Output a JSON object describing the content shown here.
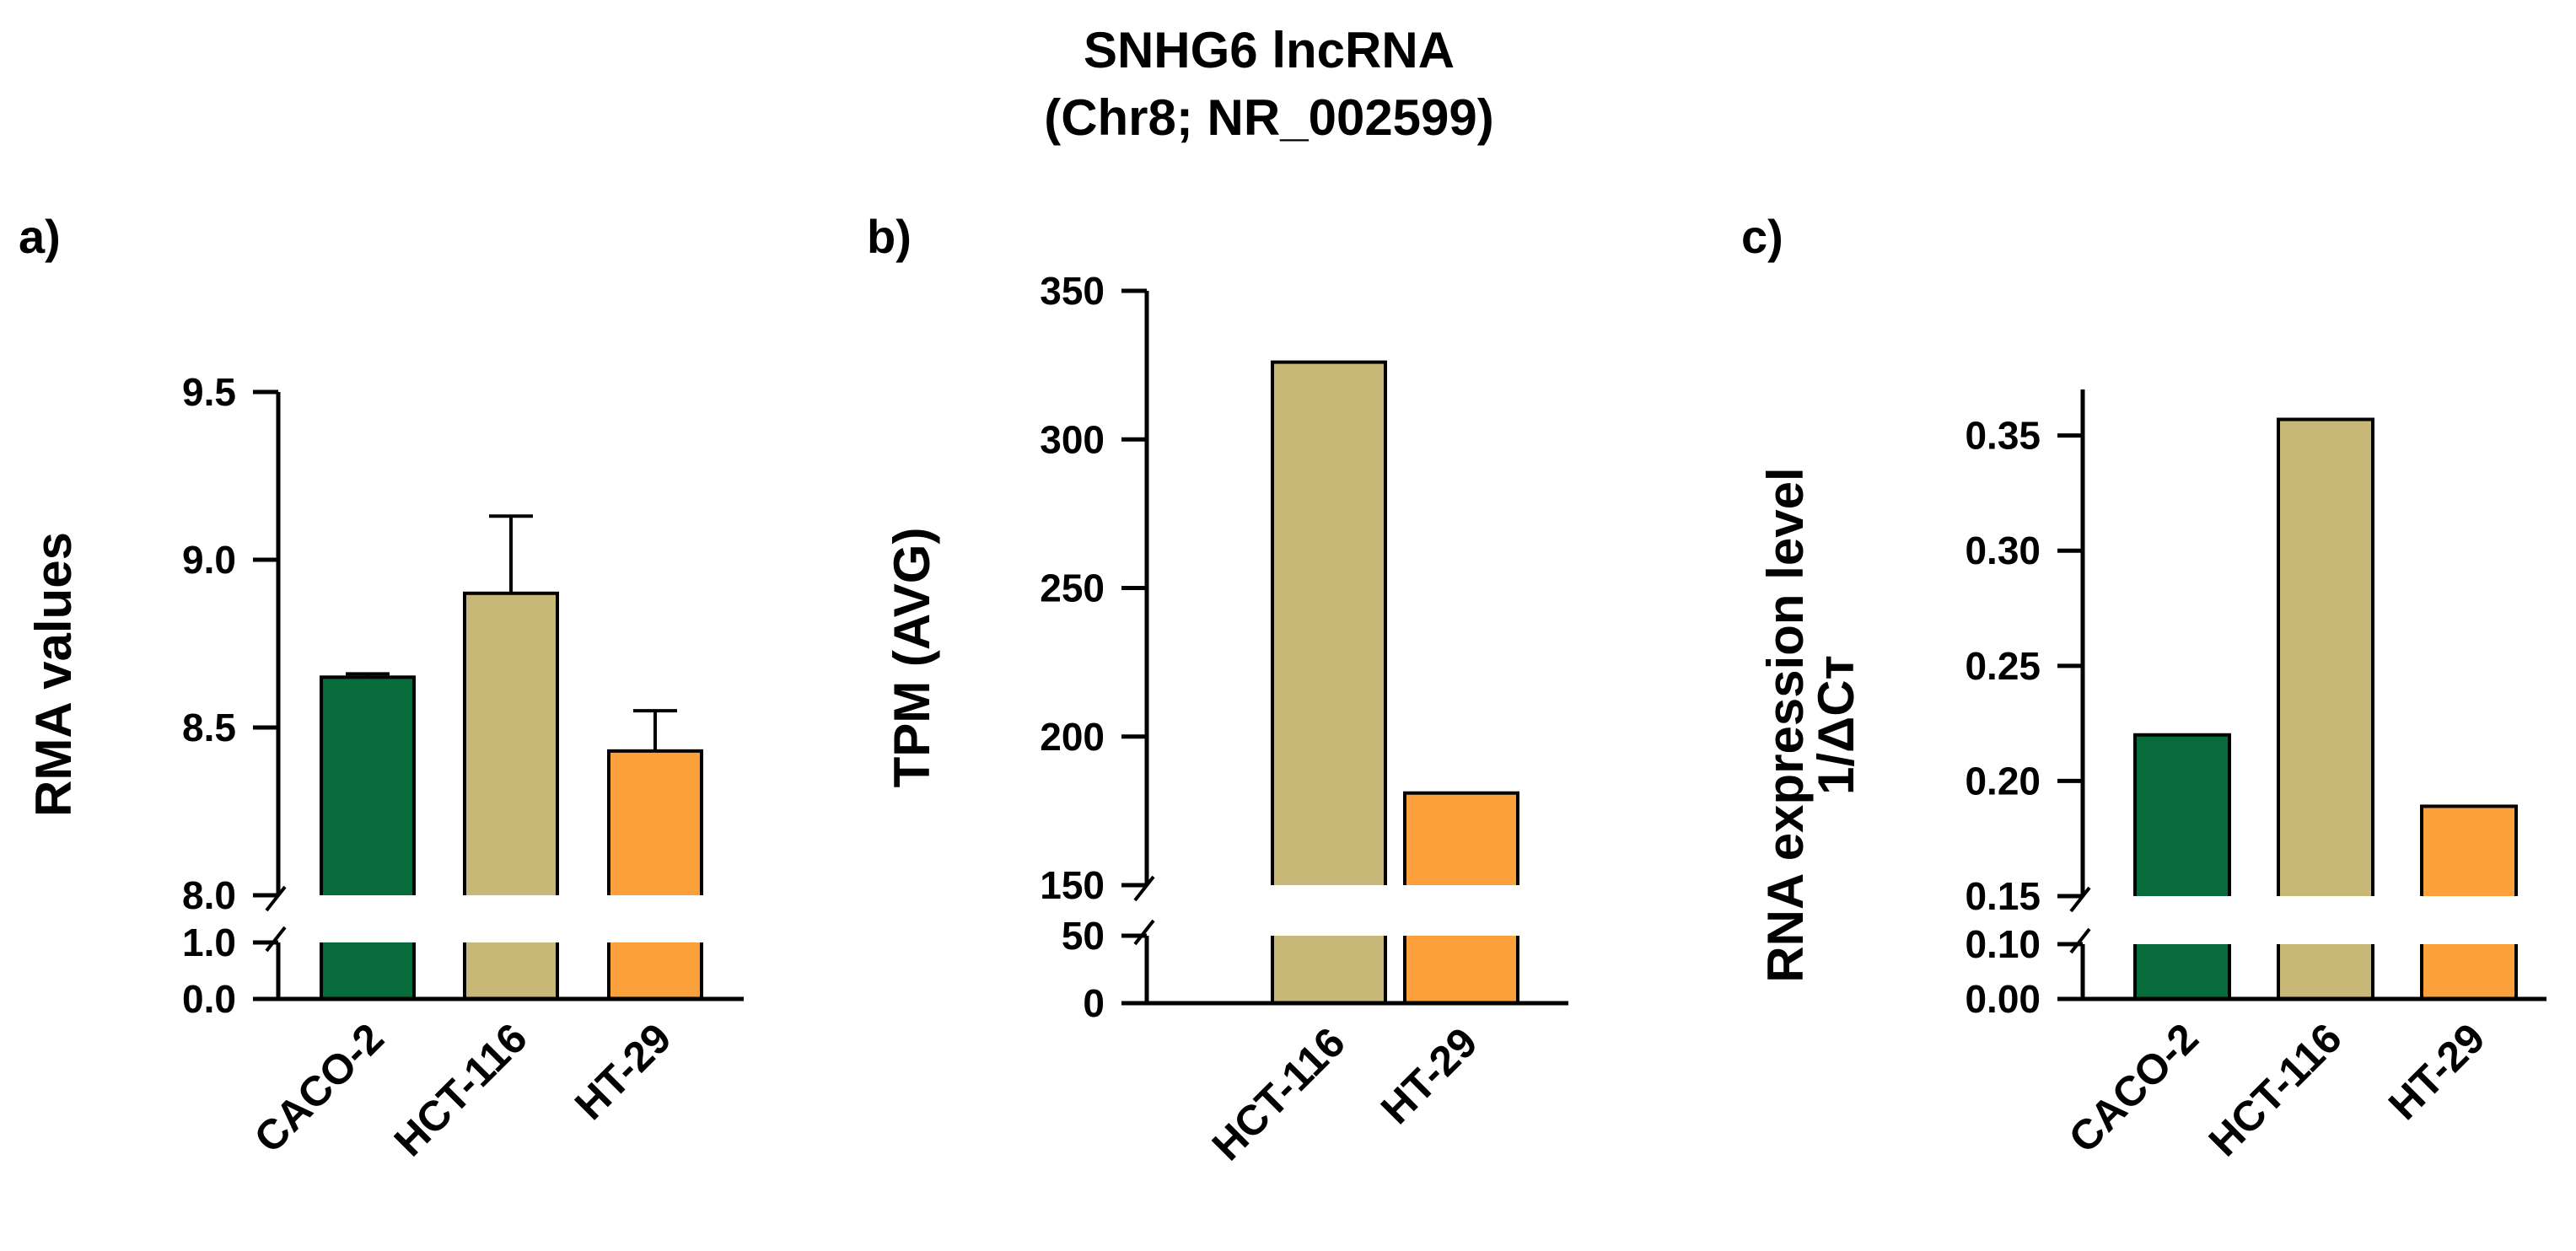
{
  "figure": {
    "title_line1": "SNHG6 lncRNA",
    "title_line2": "(Chr8; NR_002599)"
  },
  "colors": {
    "CACO-2": "#086b3b",
    "HCT-116": "#c8b878",
    "HT-29": "#fca03c"
  },
  "chart_data": [
    {
      "type": "bar",
      "panel_label": "a)",
      "ylabel": "RMA values",
      "categories": [
        "CACO-2",
        "HCT-116",
        "HT-29"
      ],
      "values": [
        8.65,
        8.9,
        8.43
      ],
      "error_upper": [
        0.01,
        0.23,
        0.12
      ],
      "axis_break": {
        "lower_segment": [
          0.0,
          1.0
        ],
        "upper_segment": [
          8.0,
          9.5
        ]
      },
      "lower_ticks": [
        {
          "value": 0.0,
          "label": "0.0"
        },
        {
          "value": 1.0,
          "label": "1.0"
        }
      ],
      "upper_ticks": [
        {
          "value": 8.0,
          "label": "8.0"
        },
        {
          "value": 8.5,
          "label": "8.5"
        },
        {
          "value": 9.0,
          "label": "9.0"
        },
        {
          "value": 9.5,
          "label": "9.5"
        }
      ]
    },
    {
      "type": "bar",
      "panel_label": "b)",
      "ylabel": "TPM (AVG)",
      "categories": [
        "HCT-116",
        "HT-29"
      ],
      "values": [
        326,
        181
      ],
      "error_upper": [
        null,
        null
      ],
      "axis_break": {
        "lower_segment": [
          0,
          50
        ],
        "upper_segment": [
          150,
          350
        ]
      },
      "lower_ticks": [
        {
          "value": 0,
          "label": "0"
        },
        {
          "value": 50,
          "label": "50"
        }
      ],
      "upper_ticks": [
        {
          "value": 150,
          "label": "150"
        },
        {
          "value": 200,
          "label": "200"
        },
        {
          "value": 250,
          "label": "250"
        },
        {
          "value": 300,
          "label": "300"
        },
        {
          "value": 350,
          "label": "350"
        }
      ]
    },
    {
      "type": "bar",
      "panel_label": "c)",
      "ylabel_line1": "RNA expression level",
      "ylabel_line2": "1/ΔCᴛ",
      "categories": [
        "CACO-2",
        "HCT-116",
        "HT-29"
      ],
      "values": [
        0.22,
        0.357,
        0.189
      ],
      "error_upper": [
        null,
        null,
        null
      ],
      "axis_break": {
        "lower_segment": [
          0.0,
          0.1
        ],
        "upper_segment": [
          0.15,
          0.37
        ]
      },
      "lower_ticks": [
        {
          "value": 0.0,
          "label": "0.00"
        },
        {
          "value": 0.1,
          "label": "0.10"
        }
      ],
      "upper_ticks": [
        {
          "value": 0.15,
          "label": "0.15"
        },
        {
          "value": 0.2,
          "label": "0.20"
        },
        {
          "value": 0.25,
          "label": "0.25"
        },
        {
          "value": 0.3,
          "label": "0.30"
        },
        {
          "value": 0.35,
          "label": "0.35"
        }
      ]
    }
  ]
}
